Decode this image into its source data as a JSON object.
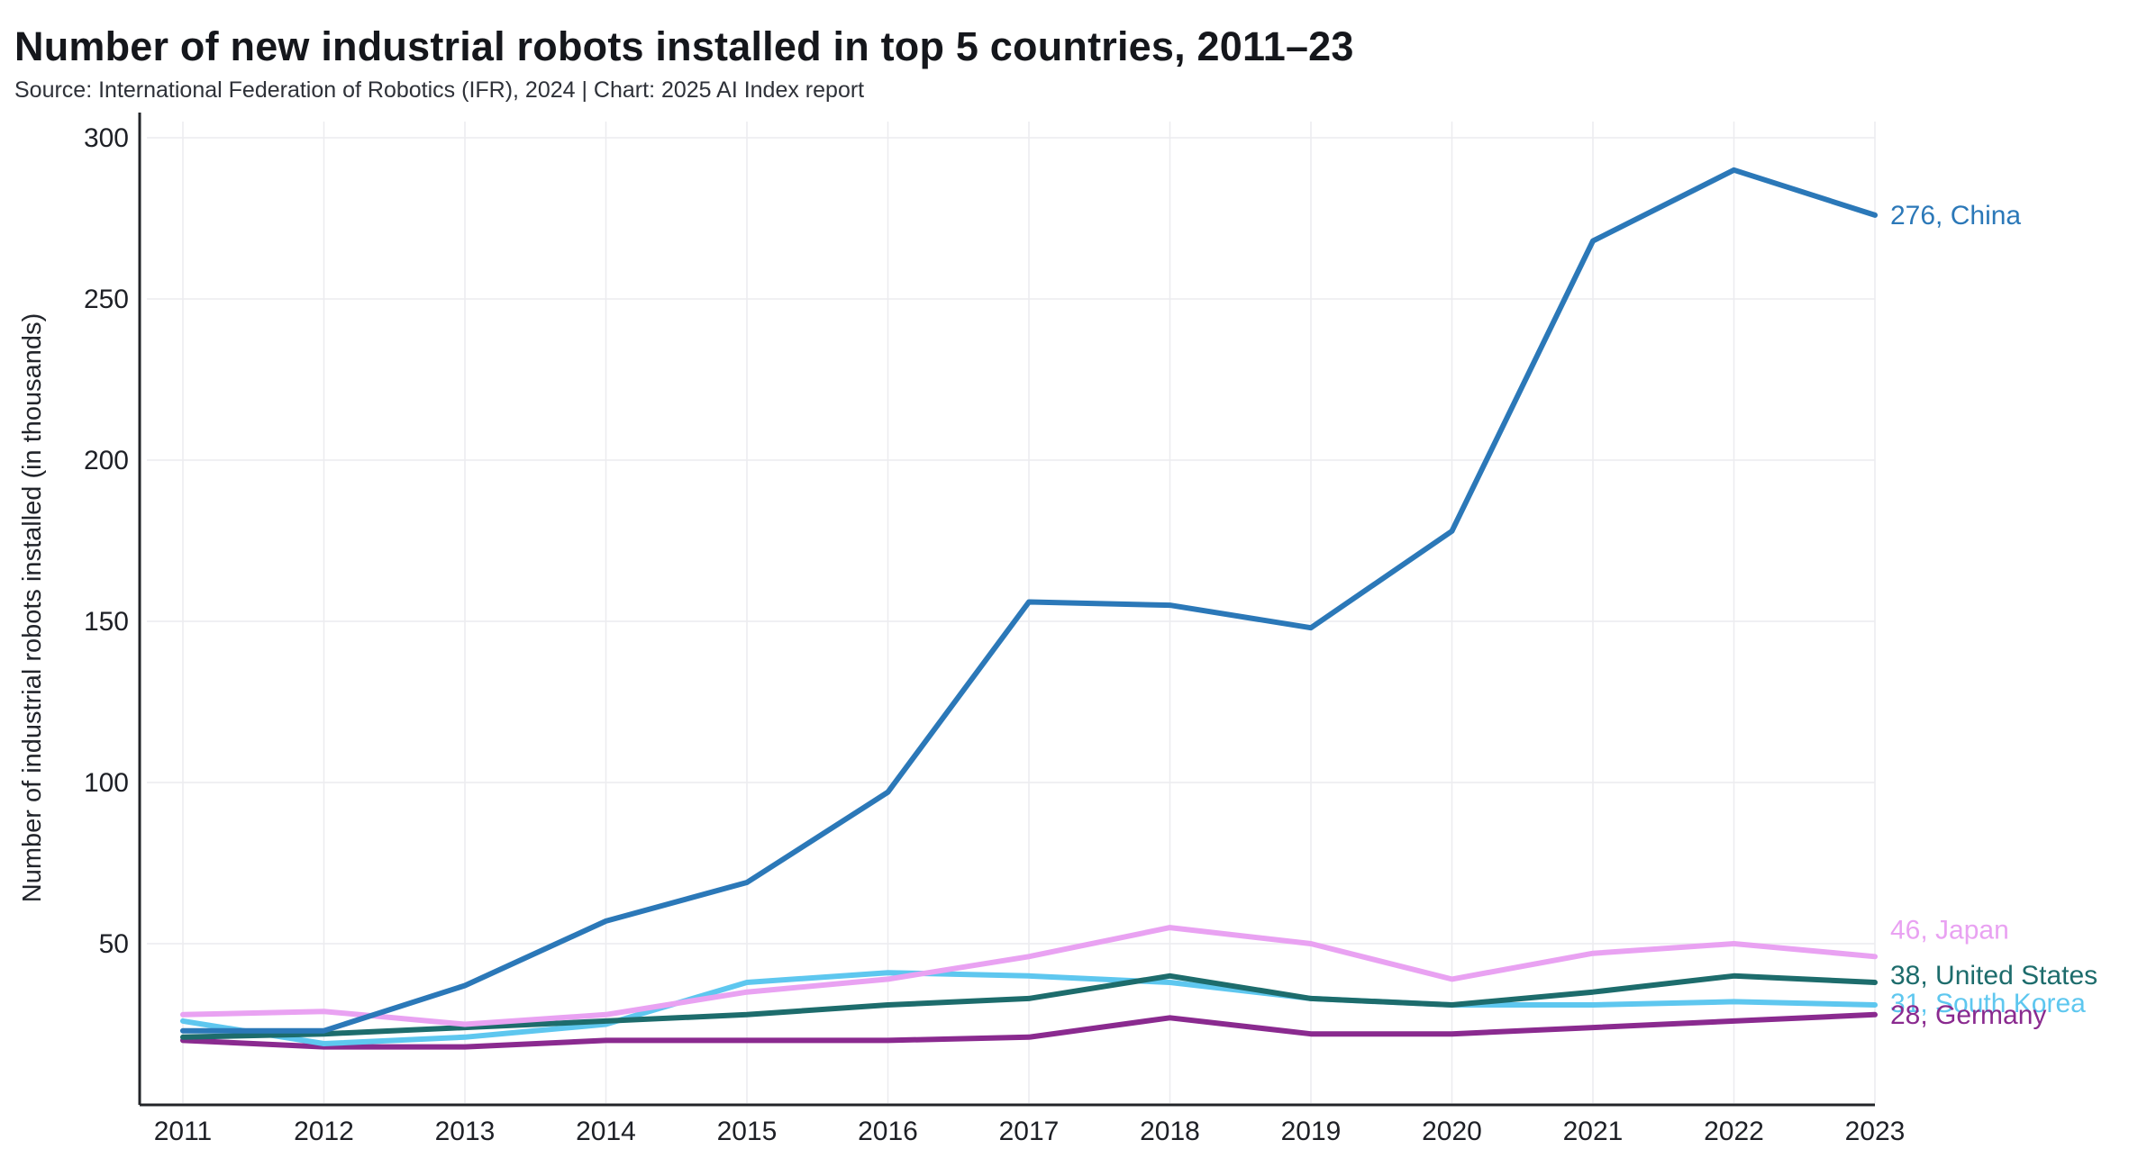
{
  "chart_data": {
    "type": "line",
    "title": "Number of new industrial robots installed in top 5 countries, 2011–23",
    "subtitle": "Source: International Federation of Robotics (IFR), 2024 | Chart: 2025 AI Index report",
    "xlabel": "",
    "ylabel": "Number of industrial robots installed (in thousands)",
    "x": [
      2011,
      2012,
      2013,
      2014,
      2015,
      2016,
      2017,
      2018,
      2019,
      2020,
      2021,
      2022,
      2023
    ],
    "x_tick_labels": [
      "2011",
      "2012",
      "2013",
      "2014",
      "2015",
      "2016",
      "2017",
      "2018",
      "2019",
      "2020",
      "2021",
      "2022",
      "2023"
    ],
    "y_ticks": [
      50,
      100,
      150,
      200,
      250,
      300
    ],
    "y_tick_labels": [
      "50",
      "100",
      "150",
      "200",
      "250",
      "300"
    ],
    "ylim": [
      -7,
      305
    ],
    "grid": true,
    "legend": "direct-labels-right",
    "series": [
      {
        "name": "China",
        "color": "#2b78b8",
        "end_label": "276, China",
        "values": [
          23,
          23,
          37,
          57,
          69,
          97,
          156,
          155,
          148,
          178,
          268,
          290,
          276
        ]
      },
      {
        "name": "Japan",
        "color": "#e9a2f2",
        "end_label": "46, Japan",
        "values": [
          28,
          29,
          25,
          28,
          35,
          39,
          46,
          55,
          50,
          39,
          47,
          50,
          46
        ]
      },
      {
        "name": "United States",
        "color": "#1d6c6c",
        "end_label": "38, United States",
        "values": [
          21,
          22,
          24,
          26,
          28,
          31,
          33,
          40,
          33,
          31,
          35,
          40,
          38
        ]
      },
      {
        "name": "South Korea",
        "color": "#5ec7ef",
        "end_label": "31, South Korea",
        "values": [
          26,
          19,
          21,
          25,
          38,
          41,
          40,
          38,
          33,
          31,
          31,
          32,
          31
        ]
      },
      {
        "name": "Germany",
        "color": "#8a2a8f",
        "end_label": "28, Germany",
        "values": [
          20,
          18,
          18,
          20,
          20,
          20,
          21,
          27,
          22,
          22,
          24,
          26,
          28
        ]
      }
    ]
  }
}
